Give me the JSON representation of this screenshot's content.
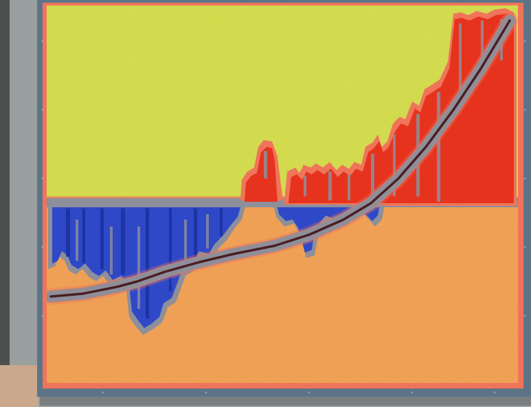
{
  "scene": {
    "subject": "framed-abstract-painting-on-gallery-wall",
    "colors": {
      "wall": "#9a9f9f",
      "wall_shadow": "#6d7373",
      "floor_hint": "#c9a88e",
      "frame": "#5d7488",
      "yellow_field": "#d4dc4a",
      "orange_field": "#ee9a47",
      "orange_speckle": "#e2763a",
      "red_mass": "#e6331e",
      "blue_mass": "#2f48c8",
      "blue_dark": "#1b2f9c",
      "grey_band": "#8d8f9a",
      "dark_line": "#4a1e22",
      "salmon_edge": "#f0745a"
    }
  }
}
